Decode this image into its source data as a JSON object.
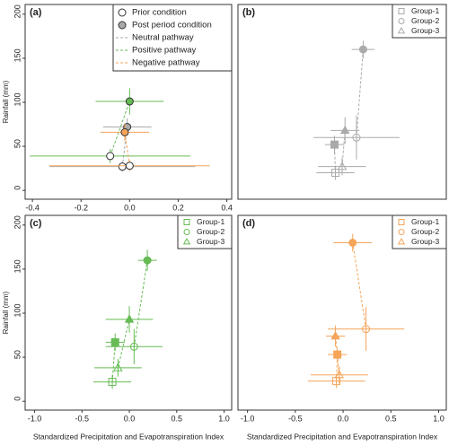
{
  "chart_data": [
    {
      "type": "scatter",
      "panel": "(a)",
      "ylabel": "Rainfall (mm)",
      "xlim": [
        -0.43,
        0.42
      ],
      "ylim": [
        -10,
        211
      ],
      "xticks": [
        -0.4,
        -0.2,
        {
          "value": 0,
          "label": "0.0"
        },
        0.2,
        0.4
      ],
      "yticks": [
        0,
        50,
        100,
        150,
        200
      ],
      "legend": "upper right",
      "legend_markers": [
        "Prior condition",
        "Post period condition"
      ],
      "series": [
        {
          "name": "Neutral pathway",
          "color": "#aaaaaa",
          "marker": "circle",
          "x": [
            -0.03,
            -0.01
          ],
          "values": [
            27,
            72
          ],
          "xerr": [
            0.3,
            0.1
          ],
          "yerr": [
            6,
            10
          ]
        },
        {
          "name": "Positive pathway",
          "color": "#66bb55",
          "marker": "circle",
          "x": [
            -0.08,
            0.0
          ],
          "values": [
            39,
            101
          ],
          "xerr": [
            0.33,
            0.14
          ],
          "yerr": [
            8,
            15
          ]
        },
        {
          "name": "Negative pathway",
          "color": "#f5a55a",
          "marker": "circle",
          "x": [
            0.0,
            -0.02
          ],
          "values": [
            28,
            66
          ],
          "xerr": [
            0.33,
            0.1
          ],
          "yerr": [
            6,
            10
          ]
        }
      ]
    },
    {
      "type": "scatter",
      "panel": "(b)",
      "xlim": [
        -1.1,
        1.08
      ],
      "ylim": [
        -10,
        211
      ],
      "legend": "upper right",
      "series": [
        {
          "name": "Group-1",
          "color": "#aaaaaa",
          "marker": "square",
          "x": [
            -0.08,
            -0.09
          ],
          "values": [
            20,
            52
          ],
          "xerr": [
            0.2,
            0.1
          ],
          "yerr": [
            8,
            10
          ]
        },
        {
          "name": "Group-2",
          "color": "#aaaaaa",
          "marker": "circle",
          "x": [
            0.14,
            0.21
          ],
          "values": [
            60,
            160
          ],
          "xerr": [
            0.45,
            0.12
          ],
          "yerr": [
            25,
            10
          ]
        },
        {
          "name": "Group-3",
          "color": "#aaaaaa",
          "marker": "triangle",
          "x": [
            -0.01,
            0.02
          ],
          "values": [
            27,
            68
          ],
          "xerr": [
            0.25,
            0.15
          ],
          "yerr": [
            10,
            15
          ]
        }
      ]
    },
    {
      "type": "scatter",
      "panel": "(c)",
      "ylabel": "Rainfall (mm)",
      "xlabel": "Standardized Precipitation and Evapotranspiration Index",
      "xlim": [
        -1.1,
        1.08
      ],
      "ylim": [
        -10,
        211
      ],
      "xticks": [
        {
          "value": -1,
          "label": "-1.0"
        },
        -0.5,
        {
          "value": 0,
          "label": "0.0"
        },
        0.5,
        {
          "value": 1,
          "label": "1.0"
        }
      ],
      "yticks": [
        0,
        50,
        100,
        150,
        200
      ],
      "legend": "upper right",
      "series": [
        {
          "name": "Group-1",
          "color": "#66bb55",
          "marker": "square",
          "x": [
            -0.18,
            -0.15
          ],
          "values": [
            22,
            67
          ],
          "xerr": [
            0.2,
            0.1
          ],
          "yerr": [
            8,
            10
          ]
        },
        {
          "name": "Group-2",
          "color": "#66bb55",
          "marker": "circle",
          "x": [
            0.05,
            0.19
          ],
          "values": [
            62,
            160
          ],
          "xerr": [
            0.3,
            0.1
          ],
          "yerr": [
            20,
            12
          ]
        },
        {
          "name": "Group-3",
          "color": "#66bb55",
          "marker": "triangle",
          "x": [
            -0.12,
            0.0
          ],
          "values": [
            38,
            93
          ],
          "xerr": [
            0.25,
            0.25
          ],
          "yerr": [
            10,
            15
          ]
        }
      ]
    },
    {
      "type": "scatter",
      "panel": "(d)",
      "xlabel": "Standardized Precipitation and Evapotranspiration Index",
      "xlim": [
        -1.1,
        1.08
      ],
      "ylim": [
        -10,
        211
      ],
      "xticks": [
        {
          "value": -1,
          "label": "-1.0"
        },
        -0.5,
        {
          "value": 0,
          "label": "0.0"
        },
        0.5,
        {
          "value": 1,
          "label": "1.0"
        }
      ],
      "legend": "upper right",
      "series": [
        {
          "name": "Group-1",
          "color": "#f5a55a",
          "marker": "square",
          "x": [
            -0.07,
            -0.06
          ],
          "values": [
            23,
            53
          ],
          "xerr": [
            0.3,
            0.1
          ],
          "yerr": [
            8,
            8
          ]
        },
        {
          "name": "Group-2",
          "color": "#f5a55a",
          "marker": "circle",
          "x": [
            0.24,
            0.1
          ],
          "values": [
            82,
            180
          ],
          "xerr": [
            0.4,
            0.2
          ],
          "yerr": [
            25,
            10
          ]
        },
        {
          "name": "Group-3",
          "color": "#f5a55a",
          "marker": "triangle",
          "x": [
            -0.04,
            -0.08
          ],
          "values": [
            30,
            74
          ],
          "xerr": [
            0.3,
            0.1
          ],
          "yerr": [
            10,
            12
          ]
        }
      ]
    }
  ]
}
